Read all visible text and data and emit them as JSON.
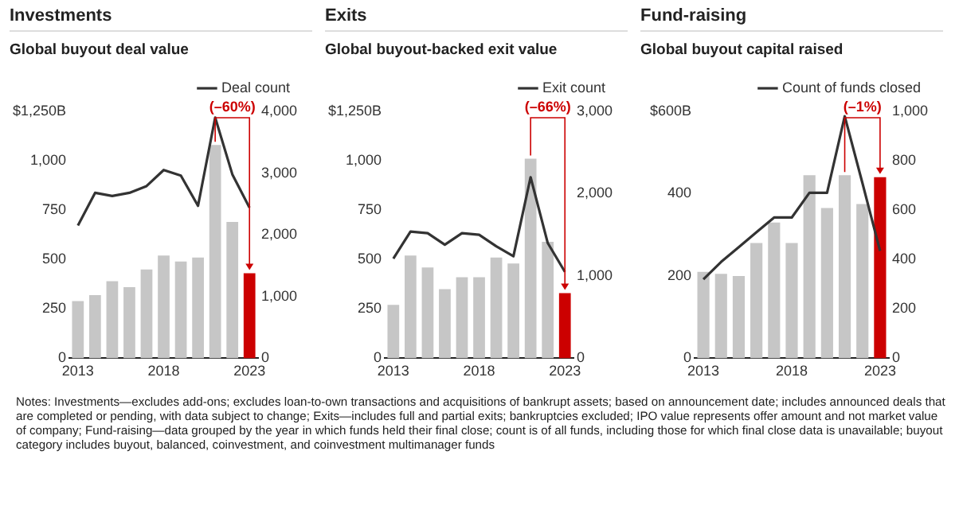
{
  "chart_data": [
    {
      "type": "bar",
      "title": "Investments",
      "subtitle": "Global buyout deal value",
      "categories": [
        "2013",
        null,
        null,
        null,
        null,
        "2018",
        null,
        null,
        null,
        null,
        "2023"
      ],
      "series": [
        {
          "colors": [
            "#c6c6c6",
            "#c6c6c6",
            "#c6c6c6",
            "#c6c6c6",
            "#c6c6c6",
            "#c6c6c6",
            "#c6c6c6",
            "#c6c6c6",
            "#c6c6c6",
            "#c6c6c6",
            "#cc0000"
          ],
          "values": [
            290,
            320,
            390,
            360,
            450,
            520,
            490,
            510,
            1080,
            690,
            430
          ]
        },
        {
          "type": "line",
          "name": "Deal count",
          "color": "#333333",
          "axis": "y2",
          "values": [
            2150,
            2680,
            2630,
            2680,
            2790,
            3050,
            2960,
            2470,
            3900,
            2980,
            2440
          ]
        }
      ],
      "ylim": [
        0,
        1250
      ],
      "yticks": [
        0,
        250,
        500,
        750,
        {
          "value": 1000,
          "label": "1,000"
        },
        {
          "value": 1250,
          "label": "$1,250B"
        }
      ],
      "y2lim": [
        0,
        4000
      ],
      "y2ticks": [
        0,
        {
          "value": 1000,
          "label": "1,000"
        },
        {
          "value": 2000,
          "label": "2,000"
        },
        {
          "value": 3000,
          "label": "3,000"
        },
        {
          "value": 4000,
          "label": "4,000"
        }
      ],
      "grid": false,
      "legend": "top right",
      "marker": "none",
      "annotations": [
        "(–60%)",
        "Notes: Investments—excludes add-ons; excludes loan-to-own transactions and acquisitions of bankrupt assets; based on announcement date; includes announced deals that are completed or pending, with data subject to change; Exits—includes full and partial exits; bankruptcies excluded; IPO value represents offer amount and not market value of company; Fund-raising—data grouped by the year in which funds held their final close; count is of all funds, including those for which final close data is unavailable; buyout category includes buyout, balanced, coinvestment, and coinvestment multimanager funds"
      ]
    },
    {
      "type": "bar",
      "title": "Exits",
      "subtitle": "Global buyout-backed exit value",
      "categories": [
        "2013",
        null,
        null,
        null,
        null,
        "2018",
        null,
        null,
        null,
        null,
        "2023"
      ],
      "series": [
        {
          "colors": [
            "#c6c6c6",
            "#c6c6c6",
            "#c6c6c6",
            "#c6c6c6",
            "#c6c6c6",
            "#c6c6c6",
            "#c6c6c6",
            "#c6c6c6",
            "#c6c6c6",
            "#c6c6c6",
            "#cc0000"
          ],
          "values": [
            270,
            520,
            460,
            350,
            410,
            410,
            510,
            480,
            1010,
            590,
            330
          ]
        },
        {
          "type": "line",
          "name": "Exit count",
          "color": "#333333",
          "axis": "y2",
          "values": [
            1210,
            1540,
            1520,
            1380,
            1520,
            1500,
            1360,
            1240,
            2200,
            1400,
            1050
          ]
        }
      ],
      "ylim": [
        0,
        1250
      ],
      "yticks": [
        0,
        250,
        500,
        750,
        {
          "value": 1000,
          "label": "1,000"
        },
        {
          "value": 1250,
          "label": "$1,250B"
        }
      ],
      "y2lim": [
        0,
        3000
      ],
      "y2ticks": [
        0,
        {
          "value": 1000,
          "label": "1,000"
        },
        {
          "value": 2000,
          "label": "2,000"
        },
        {
          "value": 3000,
          "label": "3,000"
        }
      ],
      "grid": false,
      "legend": "top right",
      "marker": "none",
      "annotations": [
        "(–66%)"
      ]
    },
    {
      "type": "bar",
      "title": "Fund-raising",
      "subtitle": "Global buyout capital raised",
      "categories": [
        "2013",
        null,
        null,
        null,
        null,
        "2018",
        null,
        null,
        null,
        null,
        "2023"
      ],
      "series": [
        {
          "colors": [
            "#c6c6c6",
            "#c6c6c6",
            "#c6c6c6",
            "#c6c6c6",
            "#c6c6c6",
            "#c6c6c6",
            "#c6c6c6",
            "#c6c6c6",
            "#c6c6c6",
            "#c6c6c6",
            "#cc0000"
          ],
          "values": [
            210,
            205,
            200,
            280,
            330,
            280,
            445,
            365,
            445,
            375,
            440
          ]
        },
        {
          "type": "line",
          "name": "Count of funds closed",
          "color": "#333333",
          "axis": "y2",
          "values": [
            320,
            390,
            450,
            510,
            570,
            570,
            670,
            670,
            980,
            710,
            435
          ]
        }
      ],
      "ylim": [
        0,
        600
      ],
      "yticks": [
        0,
        200,
        400,
        {
          "value": 600,
          "label": "$600B"
        }
      ],
      "y2lim": [
        0,
        1000
      ],
      "y2ticks": [
        0,
        200,
        400,
        600,
        800,
        {
          "value": 1000,
          "label": "1,000"
        }
      ],
      "grid": false,
      "legend": "top right",
      "marker": "none",
      "annotations": [
        "(–1%)"
      ]
    }
  ]
}
